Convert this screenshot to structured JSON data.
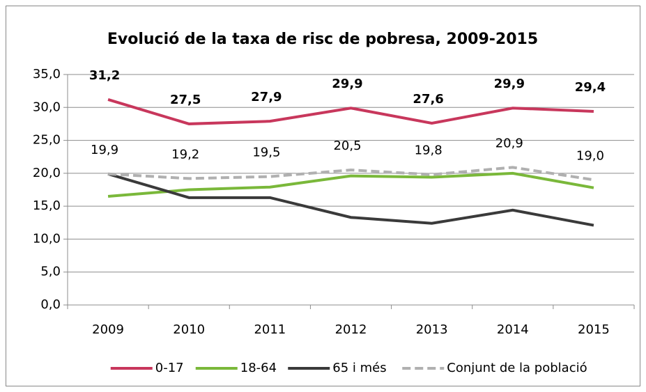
{
  "chart_data": {
    "type": "line",
    "title": "Evolució de la taxa de risc de pobresa, 2009-2015",
    "categories": [
      "2009",
      "2010",
      "2011",
      "2012",
      "2013",
      "2014",
      "2015"
    ],
    "series": [
      {
        "name": "0-17",
        "color": "#c8375c",
        "values": [
          31.2,
          27.5,
          27.9,
          29.9,
          27.6,
          29.9,
          29.4
        ],
        "value_labels": [
          "31,2",
          "27,5",
          "27,9",
          "29,9",
          "27,6",
          "29,9",
          "29,4"
        ]
      },
      {
        "name": "18-64",
        "color": "#7ab83a",
        "values": [
          16.5,
          17.5,
          17.9,
          19.6,
          19.4,
          20.0,
          17.8
        ]
      },
      {
        "name": "65 i més",
        "color": "#3a3a3a",
        "values": [
          19.9,
          16.3,
          16.3,
          13.3,
          12.4,
          14.4,
          12.1
        ]
      },
      {
        "name": "Conjunt de la població",
        "color": "#b0b0b0",
        "dashed": true,
        "values": [
          19.9,
          19.2,
          19.5,
          20.5,
          19.8,
          20.9,
          19.0
        ],
        "value_labels": [
          "19,9",
          "19,2",
          "19,5",
          "20,5",
          "19,8",
          "20,9",
          "19,0"
        ]
      }
    ],
    "ylim": [
      0,
      35
    ],
    "yticks": [
      {
        "value": 0,
        "label": "0,0"
      },
      {
        "value": 5,
        "label": "5,0"
      },
      {
        "value": 10,
        "label": "10,0"
      },
      {
        "value": 15,
        "label": "15,0"
      },
      {
        "value": 20,
        "label": "20,0"
      },
      {
        "value": 25,
        "label": "25,0"
      },
      {
        "value": 30,
        "label": "30,0"
      },
      {
        "value": 35,
        "label": "35,0"
      }
    ],
    "grid": true,
    "legend": "bottom"
  }
}
